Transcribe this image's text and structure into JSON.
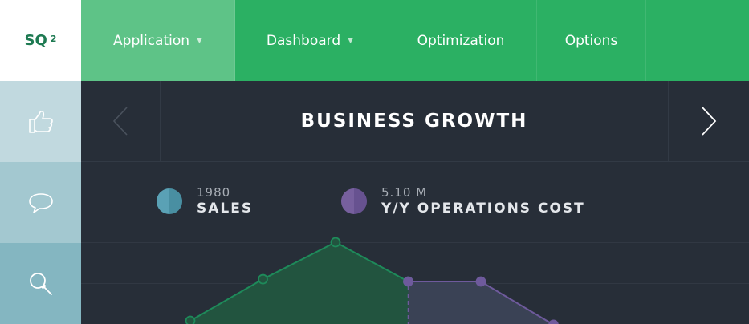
{
  "logo": {
    "text": "SQ",
    "superscript": "2"
  },
  "nav": {
    "items": [
      {
        "label": "Application",
        "has_dropdown": true,
        "active": true
      },
      {
        "label": "Dashboard",
        "has_dropdown": true,
        "active": false
      },
      {
        "label": "Optimization",
        "has_dropdown": false,
        "active": false
      },
      {
        "label": "Options",
        "has_dropdown": false,
        "active": false
      }
    ]
  },
  "sidebar": {
    "items": [
      {
        "icon": "thumbs-up-icon",
        "color": "#c1d9df"
      },
      {
        "icon": "speech-bubble-icon",
        "color": "#a3c8d0"
      },
      {
        "icon": "search-icon",
        "color": "#84b6c1"
      }
    ]
  },
  "header": {
    "title": "BUSINESS GROWTH"
  },
  "legend": {
    "sales": {
      "value": "1980",
      "label": "SALES",
      "color": "#5aa1b5"
    },
    "cost": {
      "value": "5.10 M",
      "label": "Y/Y OPERATIONS COST",
      "color": "#77609e"
    }
  },
  "chart_data": {
    "type": "area",
    "series": [
      {
        "name": "SALES",
        "color": "#1e8a5a",
        "points": [
          [
            0,
            0
          ],
          [
            1,
            0.53
          ],
          [
            2,
            1.0
          ],
          [
            3,
            0.5
          ]
        ]
      },
      {
        "name": "Y/Y OPERATIONS COST",
        "color": "#6e5a9c",
        "points": [
          [
            3,
            0.5
          ],
          [
            4,
            0.5
          ],
          [
            5,
            -0.05
          ]
        ]
      }
    ]
  },
  "colors": {
    "accent_green": "#2bb063",
    "accent_green_active": "#5ec387",
    "background": "#272e38"
  }
}
